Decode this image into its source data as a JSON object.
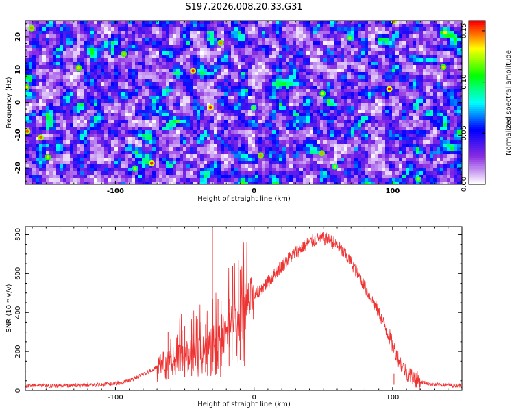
{
  "title": "S197.2026.008.20.33.G31",
  "chart_data": [
    {
      "type": "heatmap",
      "title": "S197.2026.008.20.33.G31",
      "xlabel": "Height of straight line (km)",
      "ylabel": "Frequency (Hz)",
      "xlim": [
        -165,
        150
      ],
      "ylim": [
        -25,
        25
      ],
      "x_ticks": [
        -100,
        0,
        100
      ],
      "y_ticks": [
        -20,
        -10,
        0,
        10,
        20
      ],
      "x_tick_labels": [
        "-100",
        "0",
        "100"
      ],
      "y_tick_labels": [
        "-20",
        "-10",
        "0",
        "10",
        "20"
      ],
      "colorbar": {
        "label": "Normalized spectral amplitude",
        "range": [
          0.0,
          0.16
        ],
        "ticks": [
          0.0,
          0.05,
          0.1,
          0.15
        ],
        "tick_labels": [
          "0.00",
          "0.05",
          "0.10",
          "0.15"
        ],
        "colormap": [
          "#ffffff",
          "#8a2be2",
          "#0000ff",
          "#00ffff",
          "#00ff00",
          "#ffff00",
          "#ff0000"
        ]
      },
      "note": "Noise-like spectral field; values mostly 0.02-0.08 with sparse peaks up to ~0.16"
    },
    {
      "type": "line",
      "xlabel": "Height of straight line (km)",
      "ylabel": "SNR (10 * v/v)",
      "xlim": [
        -165,
        150
      ],
      "ylim": [
        0,
        840
      ],
      "x_ticks": [
        -100,
        0,
        100
      ],
      "y_ticks": [
        0,
        200,
        400,
        600,
        800
      ],
      "x_tick_labels": [
        "-100",
        "0",
        "100"
      ],
      "y_tick_labels": [
        "0",
        "200",
        "400",
        "600",
        "800"
      ],
      "series": [
        {
          "name": "SNR",
          "color": "#ee3333",
          "x": [
            -165,
            -140,
            -110,
            -95,
            -85,
            -75,
            -65,
            -60,
            -55,
            -50,
            -45,
            -40,
            -35,
            -30,
            -25,
            -20,
            -15,
            -10,
            -5,
            0,
            10,
            20,
            30,
            40,
            45,
            50,
            55,
            60,
            70,
            80,
            90,
            97,
            100,
            105,
            110,
            120,
            130,
            150
          ],
          "values": [
            25,
            25,
            30,
            40,
            65,
            100,
            140,
            150,
            165,
            175,
            185,
            200,
            235,
            255,
            285,
            300,
            340,
            390,
            440,
            480,
            555,
            640,
            710,
            760,
            775,
            780,
            770,
            745,
            660,
            530,
            400,
            290,
            230,
            150,
            90,
            45,
            30,
            25
          ],
          "spikes": [
            {
              "x": -62,
              "y": 300
            },
            {
              "x": -50,
              "y": 330
            },
            {
              "x": -45,
              "y": 290
            },
            {
              "x": -35,
              "y": 340
            },
            {
              "x": -30,
              "y": 830
            },
            {
              "x": -26,
              "y": 470
            },
            {
              "x": -18,
              "y": 470
            },
            {
              "x": -10,
              "y": 620
            },
            {
              "x": -8,
              "y": 740
            },
            {
              "x": 101,
              "y": 30
            }
          ]
        }
      ]
    }
  ]
}
